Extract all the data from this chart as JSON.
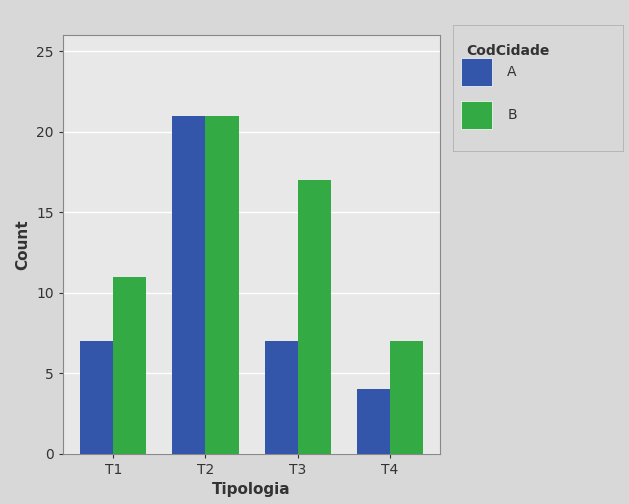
{
  "categories": [
    "T1",
    "T2",
    "T3",
    "T4"
  ],
  "values_A": [
    7,
    21,
    7,
    4
  ],
  "values_B": [
    11,
    21,
    17,
    7
  ],
  "color_A": "#3355AA",
  "color_B": "#33AA44",
  "xlabel": "Tipologia",
  "ylabel": "Count",
  "legend_title": "CodCidade",
  "legend_labels": [
    "A",
    "B"
  ],
  "ylim": [
    0,
    26
  ],
  "yticks": [
    0,
    5,
    10,
    15,
    20,
    25
  ],
  "plot_bg_color": "#E8E8E8",
  "fig_bg_color": "#D8D8D8",
  "bar_width": 0.36,
  "xlabel_fontsize": 11,
  "ylabel_fontsize": 11,
  "legend_fontsize": 10,
  "tick_fontsize": 10,
  "text_color": "#333333",
  "spine_color": "#888888"
}
